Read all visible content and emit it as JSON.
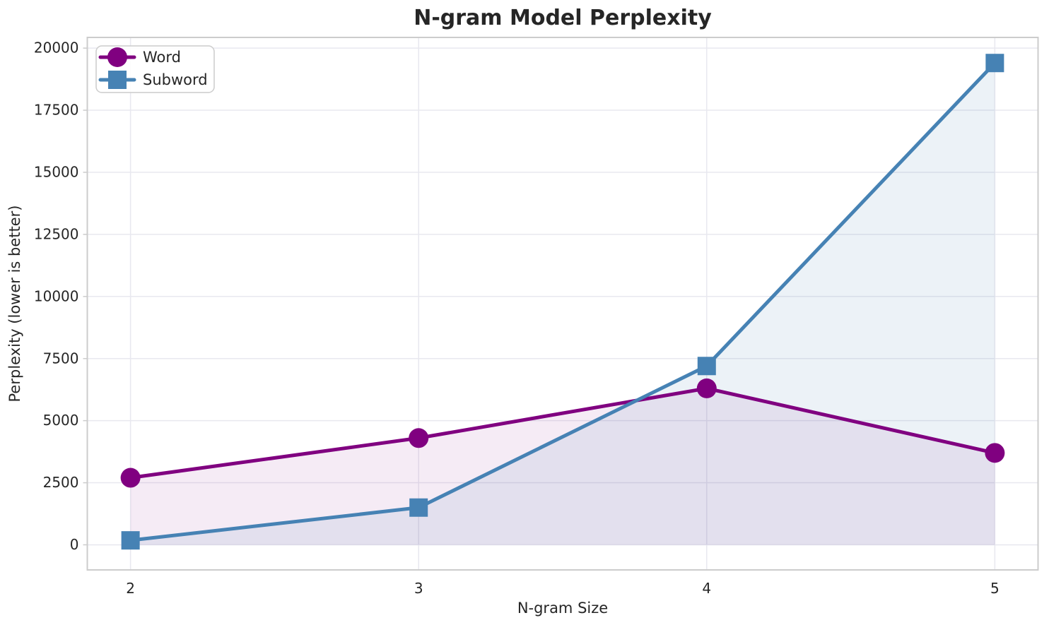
{
  "chart_data": {
    "type": "line",
    "title": "N-gram Model Perplexity",
    "xlabel": "N-gram Size",
    "ylabel": "Perplexity (lower is better)",
    "x": [
      2,
      3,
      4,
      5
    ],
    "xticks": [
      "2",
      "3",
      "4",
      "5"
    ],
    "xtick_values": [
      2,
      3,
      4,
      5
    ],
    "yticks": [
      "0",
      "2500",
      "5000",
      "7500",
      "10000",
      "12500",
      "15000",
      "17500",
      "20000"
    ],
    "ytick_values": [
      0,
      2500,
      5000,
      7500,
      10000,
      12500,
      15000,
      17500,
      20000
    ],
    "xlim": [
      1.85,
      5.15
    ],
    "ylim": [
      -1010,
      20430
    ],
    "grid": true,
    "legend_position": "upper left",
    "fill_to_zero": true,
    "series": [
      {
        "name": "Word",
        "values": [
          2700,
          4300,
          6300,
          3700
        ],
        "color": "#800080",
        "marker": "circle",
        "fill_opacity": 0.08
      },
      {
        "name": "Subword",
        "values": [
          180,
          1500,
          7200,
          19400
        ],
        "color": "#4682B4",
        "marker": "square",
        "fill_opacity": 0.1
      }
    ]
  },
  "style": {
    "grid_color": "#E8E8EF",
    "spine_color": "#CCCCCC",
    "tick_color": "#CCCCCC",
    "text_color": "#262626",
    "background_color": "#FFFFFF",
    "legend_background": "rgba(255,255,255,0.85)",
    "legend_border": "#CCCCCC"
  }
}
